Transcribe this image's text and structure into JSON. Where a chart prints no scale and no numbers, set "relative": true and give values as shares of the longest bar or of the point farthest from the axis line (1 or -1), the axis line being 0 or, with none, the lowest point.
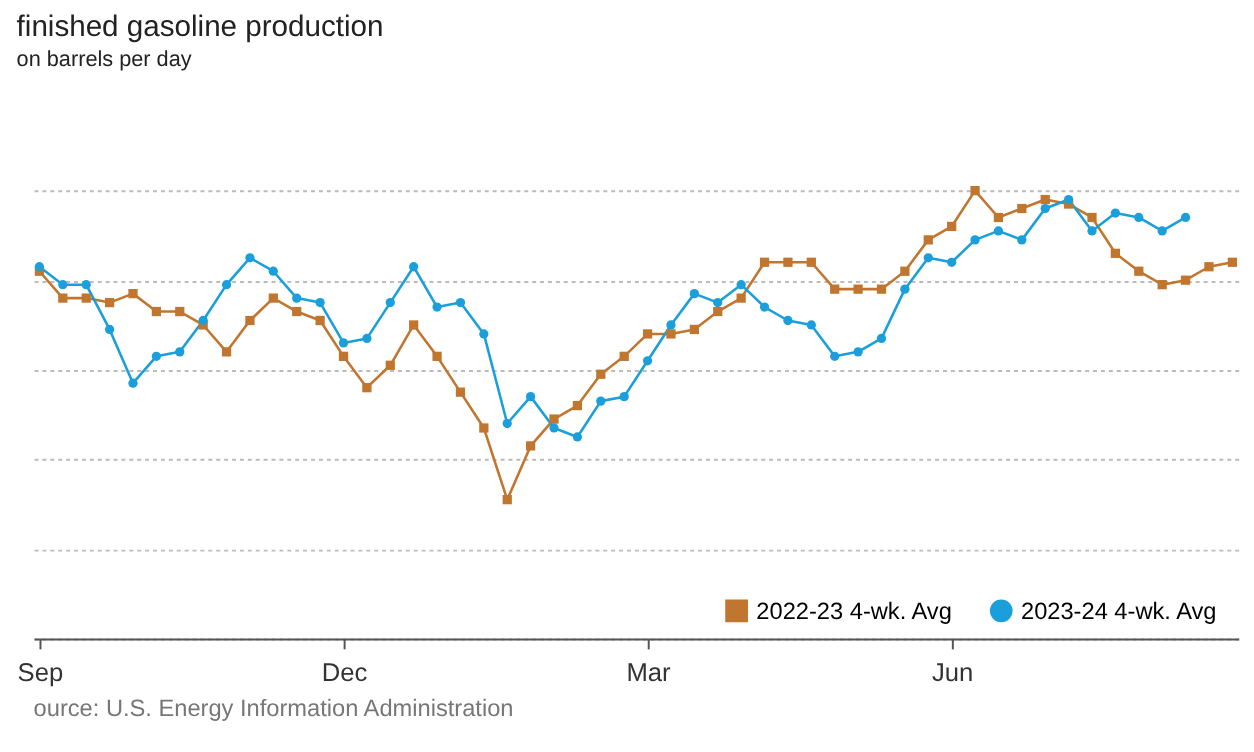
{
  "chart_data": {
    "type": "line",
    "title": "finished gasoline production",
    "subtitle": "on barrels per day",
    "annotations": [
      "ource: U.S. Energy Information Administration"
    ],
    "categories": [
      "Sep",
      null,
      null,
      null,
      null,
      null,
      null,
      null,
      null,
      null,
      null,
      null,
      null,
      "Dec",
      null,
      null,
      null,
      null,
      null,
      null,
      null,
      null,
      null,
      null,
      null,
      null,
      "Mar",
      null,
      null,
      null,
      null,
      null,
      null,
      null,
      null,
      null,
      null,
      null,
      null,
      "Jun",
      null,
      null,
      null,
      null,
      null,
      null,
      null,
      null,
      null,
      null,
      null,
      null
    ],
    "relative": true,
    "grid": "y",
    "legend": "bottom right",
    "series": [
      {
        "name": "2022-23  4-wk. Avg",
        "color": "#c0762f",
        "marker": "square",
        "values": [
          0.82,
          0.76,
          0.76,
          0.75,
          0.77,
          0.73,
          0.73,
          0.7,
          0.64,
          0.71,
          0.76,
          0.73,
          0.71,
          0.63,
          0.56,
          0.61,
          0.7,
          0.63,
          0.55,
          0.47,
          0.31,
          0.43,
          0.49,
          0.52,
          0.59,
          0.63,
          0.68,
          0.68,
          0.69,
          0.73,
          0.76,
          0.84,
          0.84,
          0.84,
          0.78,
          0.78,
          0.78,
          0.82,
          0.89,
          0.92,
          1,
          0.94,
          0.96,
          0.98,
          0.97,
          0.94,
          0.86,
          0.82,
          0.79,
          0.8,
          0.83,
          0.84
        ]
      },
      {
        "name": "2023-24  4-wk. Avg",
        "color": "#1a9fdb",
        "marker": "circle",
        "values": [
          0.83,
          0.79,
          0.79,
          0.69,
          0.57,
          0.63,
          0.64,
          0.71,
          0.79,
          0.85,
          0.82,
          0.76,
          0.75,
          0.66,
          0.67,
          0.75,
          0.83,
          0.74,
          0.75,
          0.68,
          0.48,
          0.54,
          0.47,
          0.45,
          0.53,
          0.54,
          0.62,
          0.7,
          0.77,
          0.75,
          0.79,
          0.74,
          0.71,
          0.7,
          0.63,
          0.64,
          0.67,
          0.78,
          0.85,
          0.84,
          0.89,
          0.91,
          0.89,
          0.96,
          0.98,
          0.91,
          0.95,
          0.94,
          0.91,
          0.94,
          null,
          null
        ]
      }
    ]
  }
}
